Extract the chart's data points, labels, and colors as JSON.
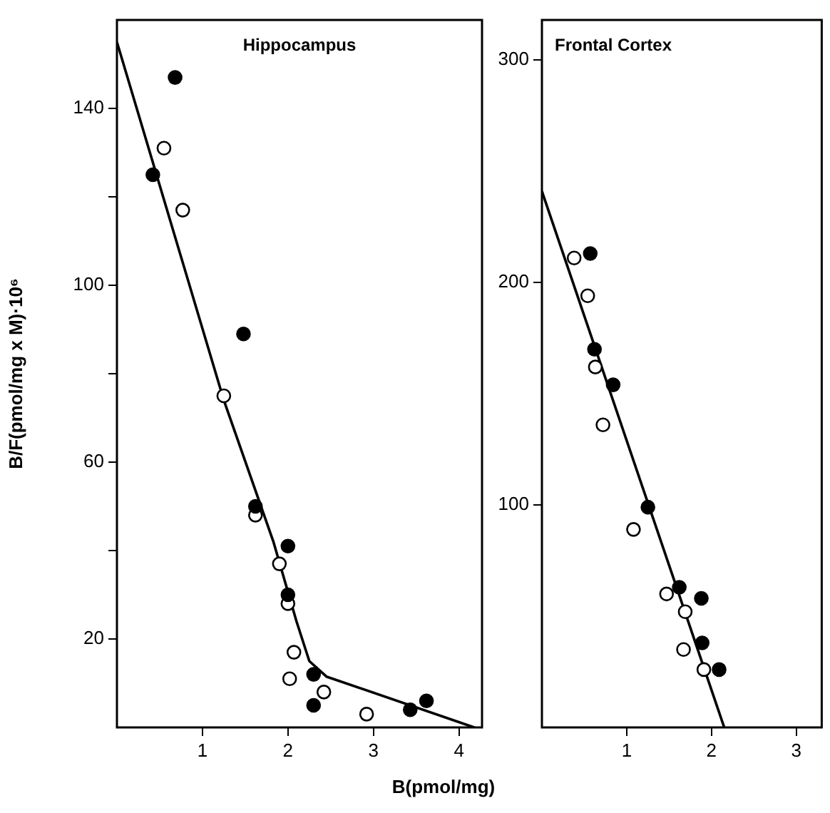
{
  "chart_data": [
    {
      "type": "scatter",
      "title": "Hippocampus",
      "ylabel": "B/F(pmol/mg x M)·10⁶",
      "xlabel": "B(pmol/mg)",
      "xlim": [
        0,
        4.27
      ],
      "xticks": [
        1,
        2,
        3,
        4
      ],
      "ylim": [
        0,
        160
      ],
      "yticks": [
        {
          "value": 20,
          "label": "20"
        },
        {
          "value": 40,
          "label": null
        },
        {
          "value": 60,
          "label": "60"
        },
        {
          "value": 80,
          "label": null
        },
        {
          "value": 100,
          "label": "100"
        },
        {
          "value": 120,
          "label": null
        },
        {
          "value": 140,
          "label": "140"
        }
      ],
      "grid": false,
      "marker": "circle",
      "series": [
        {
          "color": "#000000",
          "x": [
            0.68,
            0.42,
            1.48,
            1.62,
            2.0,
            2.0,
            2.3,
            2.3,
            3.43,
            3.62
          ],
          "values": [
            147,
            125,
            89,
            50,
            41,
            30,
            12,
            5,
            4,
            6
          ]
        },
        {
          "color": "#ffffff",
          "x": [
            0.55,
            0.77,
            1.25,
            1.62,
            1.9,
            2.0,
            2.07,
            2.02,
            2.42,
            2.92
          ],
          "values": [
            131,
            117,
            75,
            48,
            37,
            28,
            17,
            11,
            8,
            3
          ]
        },
        {
          "type": "line",
          "marker": "none",
          "color": "#000000",
          "x": [
            0,
            1.25,
            1.83,
            2.1,
            2.25,
            2.45,
            4.18
          ],
          "values": [
            155,
            74,
            42,
            24,
            15,
            11.5,
            0
          ]
        }
      ]
    },
    {
      "type": "scatter",
      "title": "Frontal Cortex",
      "xlim": [
        0,
        3.3
      ],
      "xticks": [
        1,
        2,
        3
      ],
      "ylim": [
        0,
        318
      ],
      "yticks": [
        100,
        200,
        300
      ],
      "grid": false,
      "marker": "circle",
      "series": [
        {
          "color": "#000000",
          "x": [
            0.57,
            0.62,
            0.84,
            1.25,
            1.62,
            1.88,
            1.89,
            2.09
          ],
          "values": [
            213,
            170,
            154,
            99,
            63,
            58,
            38,
            26
          ]
        },
        {
          "color": "#ffffff",
          "x": [
            0.38,
            0.54,
            0.63,
            0.72,
            1.08,
            1.47,
            1.69,
            1.67,
            1.91
          ],
          "values": [
            211,
            194,
            162,
            136,
            89,
            60,
            52,
            35,
            26
          ]
        },
        {
          "type": "line",
          "marker": "none",
          "color": "#000000",
          "x": [
            0,
            2.15
          ],
          "values": [
            241,
            0
          ]
        }
      ]
    }
  ]
}
